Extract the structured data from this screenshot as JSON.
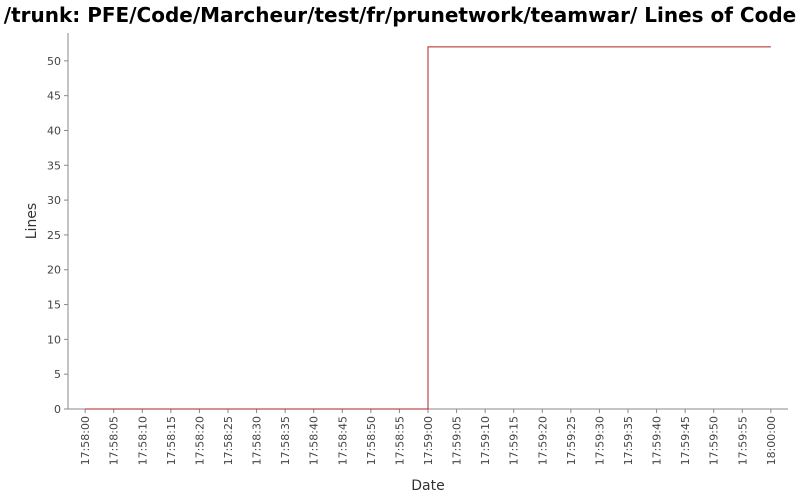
{
  "chart_data": {
    "type": "line",
    "title": "/trunk: PFE/Code/Marcheur/test/fr/prunetwork/teamwar/ Lines of Code",
    "xlabel": "Date",
    "ylabel": "Lines",
    "x_ticks": [
      "17:58:00",
      "17:58:05",
      "17:58:10",
      "17:58:15",
      "17:58:20",
      "17:58:25",
      "17:58:30",
      "17:58:35",
      "17:58:40",
      "17:58:45",
      "17:58:50",
      "17:58:55",
      "17:59:00",
      "17:59:05",
      "17:59:10",
      "17:59:15",
      "17:59:20",
      "17:59:25",
      "17:59:30",
      "17:59:35",
      "17:59:40",
      "17:59:45",
      "17:59:50",
      "17:59:55",
      "18:00:00"
    ],
    "y_ticks": [
      0,
      5,
      10,
      15,
      20,
      25,
      30,
      35,
      40,
      45,
      50
    ],
    "ylim": [
      0,
      54
    ],
    "xlim": [
      "17:57:57",
      "18:00:03"
    ],
    "grid": false,
    "series": [
      {
        "color": "#b22222",
        "step": true,
        "points": [
          {
            "x": "17:58:00",
            "y": 0
          },
          {
            "x": "17:59:00",
            "y": 0
          },
          {
            "x": "17:59:00",
            "y": 52
          },
          {
            "x": "18:00:00",
            "y": 52
          }
        ]
      }
    ],
    "axis_color": "#888888"
  }
}
